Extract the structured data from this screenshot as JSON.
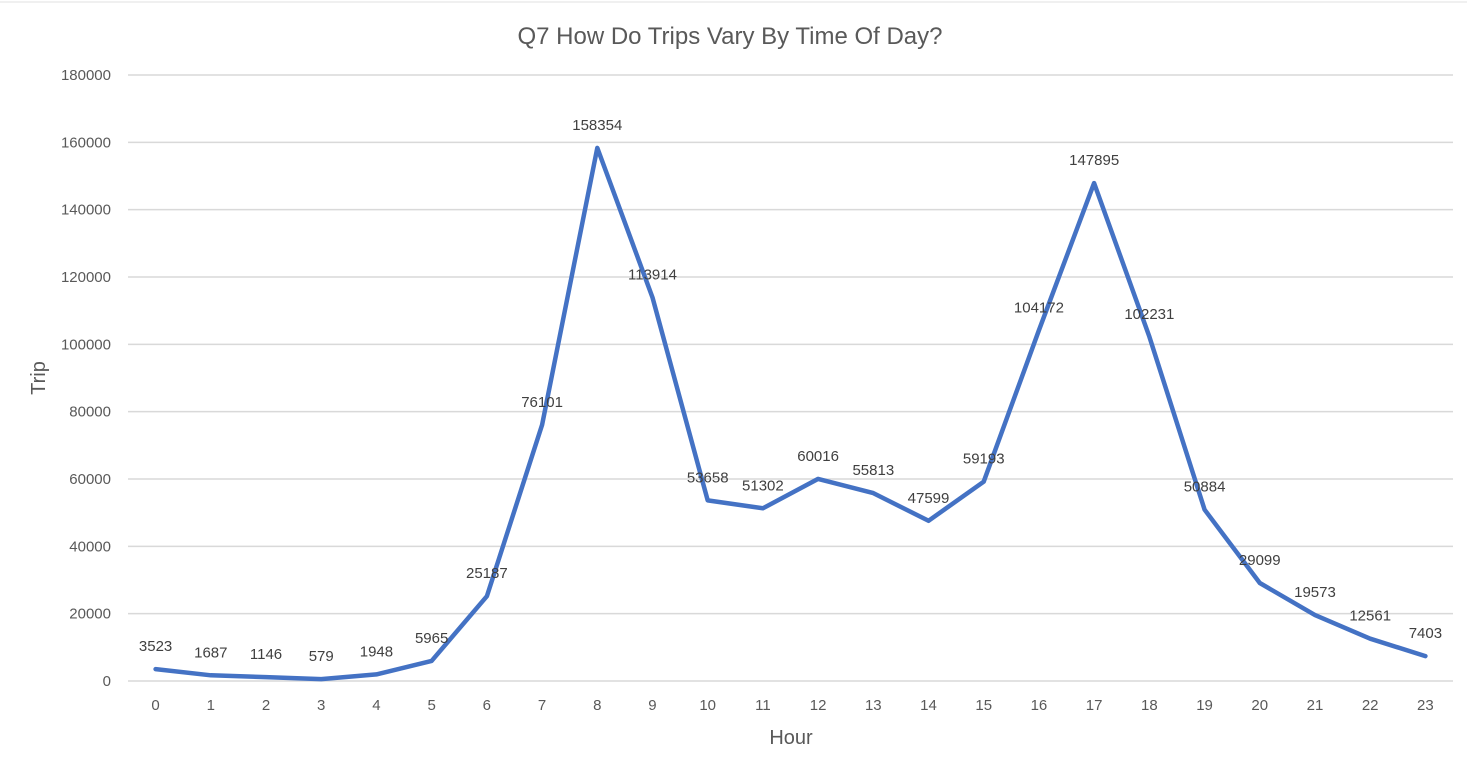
{
  "chart_data": {
    "type": "line",
    "title": "Q7 How Do Trips Vary By Time Of Day?",
    "xlabel": "Hour",
    "ylabel": "Trip",
    "categories": [
      "0",
      "1",
      "2",
      "3",
      "4",
      "5",
      "6",
      "7",
      "8",
      "9",
      "10",
      "11",
      "12",
      "13",
      "14",
      "15",
      "16",
      "17",
      "18",
      "19",
      "20",
      "21",
      "22",
      "23"
    ],
    "series": [
      {
        "values": [
          3523,
          1687,
          1146,
          579,
          1948,
          5965,
          25187,
          76101,
          158354,
          113914,
          53658,
          51302,
          60016,
          55813,
          47599,
          59193,
          104172,
          147895,
          102231,
          50884,
          29099,
          19573,
          12561,
          7403
        ]
      }
    ],
    "y_ticks": [
      "0",
      "20000",
      "40000",
      "60000",
      "80000",
      "100000",
      "120000",
      "140000",
      "160000",
      "180000"
    ],
    "ylim": [
      0,
      180000
    ],
    "grid": true,
    "data_labels": true,
    "legend": "none",
    "series_color": "#4472C4"
  }
}
